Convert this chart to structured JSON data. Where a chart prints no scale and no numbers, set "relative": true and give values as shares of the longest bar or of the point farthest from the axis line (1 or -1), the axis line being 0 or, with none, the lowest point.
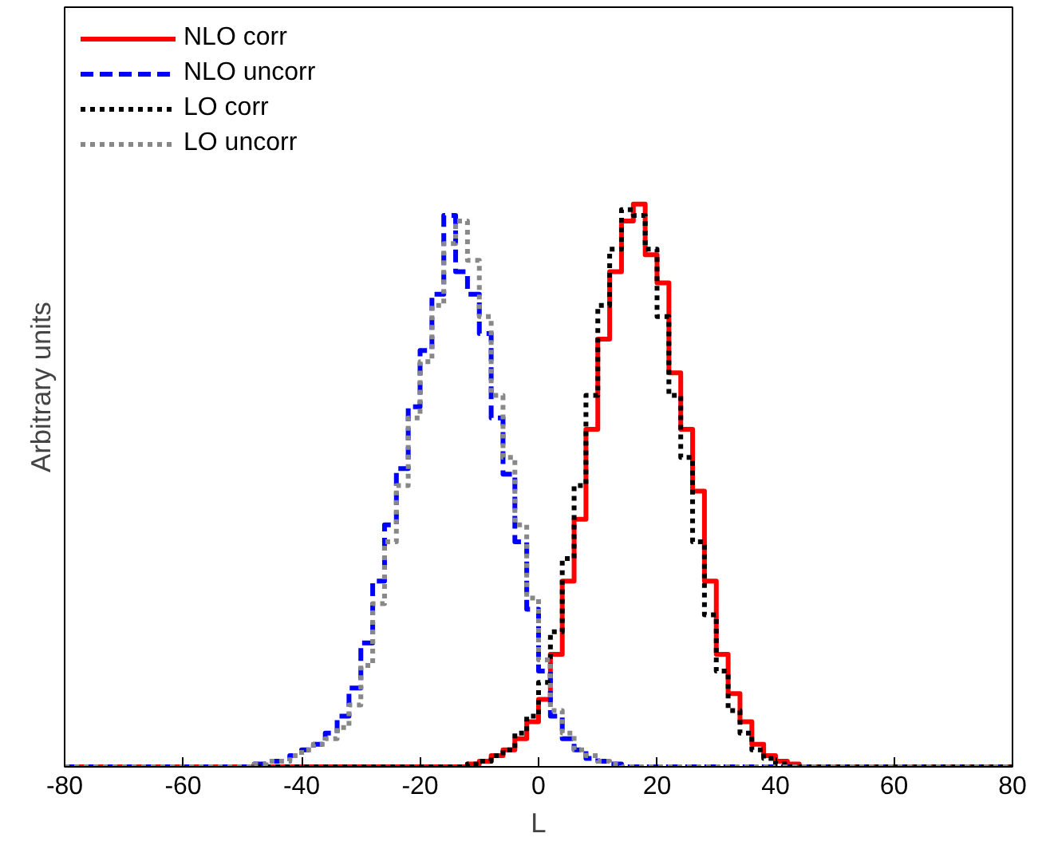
{
  "chart_data": {
    "type": "step",
    "xlabel": "L",
    "ylabel": "Arbitrary units",
    "relative": true,
    "xlim": [
      -80,
      80
    ],
    "xticks": [
      -80,
      -60,
      -40,
      -20,
      0,
      20,
      40,
      60,
      80
    ],
    "legend": "top left",
    "grid": false,
    "series": [
      {
        "name": "NLO corr",
        "color": "#ff0000",
        "line_style": "solid",
        "x": [
          -80,
          -12,
          -10,
          -8,
          -6,
          -4,
          -2,
          0,
          2,
          4,
          6,
          8,
          10,
          12,
          14,
          16,
          18,
          20,
          22,
          24,
          26,
          28,
          30,
          32,
          34,
          36,
          38,
          40,
          42,
          44,
          80
        ],
        "values": [
          0,
          0.005,
          0.01,
          0.02,
          0.03,
          0.05,
          0.08,
          0.12,
          0.2,
          0.33,
          0.44,
          0.6,
          0.76,
          0.88,
          0.97,
          1.0,
          0.91,
          0.86,
          0.7,
          0.6,
          0.49,
          0.33,
          0.2,
          0.13,
          0.08,
          0.04,
          0.02,
          0.01,
          0.005,
          0,
          0
        ]
      },
      {
        "name": "NLO uncorr",
        "color": "#0000ff",
        "line_style": "dashed",
        "x": [
          -80,
          -48,
          -46,
          -44,
          -42,
          -40,
          -38,
          -36,
          -34,
          -32,
          -30,
          -28,
          -26,
          -24,
          -22,
          -20,
          -18,
          -16,
          -14,
          -12,
          -10,
          -8,
          -6,
          -4,
          -2,
          0,
          2,
          4,
          6,
          8,
          10,
          12,
          14,
          80
        ],
        "values": [
          0,
          0.005,
          0.01,
          0.01,
          0.02,
          0.03,
          0.04,
          0.06,
          0.09,
          0.14,
          0.22,
          0.33,
          0.43,
          0.53,
          0.64,
          0.74,
          0.84,
          0.98,
          0.88,
          0.84,
          0.77,
          0.62,
          0.52,
          0.4,
          0.28,
          0.17,
          0.09,
          0.05,
          0.03,
          0.015,
          0.01,
          0.005,
          0,
          0
        ]
      },
      {
        "name": "LO corr",
        "color": "#000000",
        "line_style": "dotted",
        "x": [
          -80,
          -12,
          -10,
          -8,
          -6,
          -4,
          -2,
          0,
          2,
          4,
          6,
          8,
          10,
          12,
          14,
          16,
          18,
          20,
          22,
          24,
          26,
          28,
          30,
          32,
          34,
          36,
          38,
          40,
          42,
          80
        ],
        "values": [
          0,
          0.005,
          0.01,
          0.02,
          0.03,
          0.06,
          0.09,
          0.15,
          0.24,
          0.37,
          0.5,
          0.66,
          0.82,
          0.92,
          0.99,
          0.98,
          0.92,
          0.8,
          0.66,
          0.55,
          0.4,
          0.27,
          0.17,
          0.1,
          0.06,
          0.03,
          0.015,
          0.005,
          0,
          0
        ]
      },
      {
        "name": "LO uncorr",
        "color": "#888888",
        "line_style": "dotted",
        "x": [
          -80,
          -48,
          -46,
          -44,
          -42,
          -40,
          -38,
          -36,
          -34,
          -32,
          -30,
          -28,
          -26,
          -24,
          -22,
          -20,
          -18,
          -16,
          -14,
          -12,
          -10,
          -8,
          -6,
          -4,
          -2,
          0,
          2,
          4,
          6,
          8,
          10,
          12,
          14,
          80
        ],
        "values": [
          0,
          0.005,
          0.01,
          0.01,
          0.02,
          0.03,
          0.04,
          0.05,
          0.07,
          0.11,
          0.18,
          0.29,
          0.4,
          0.5,
          0.62,
          0.72,
          0.82,
          0.93,
          0.97,
          0.9,
          0.8,
          0.66,
          0.55,
          0.43,
          0.3,
          0.19,
          0.1,
          0.06,
          0.03,
          0.02,
          0.01,
          0.005,
          0,
          0
        ]
      }
    ]
  }
}
